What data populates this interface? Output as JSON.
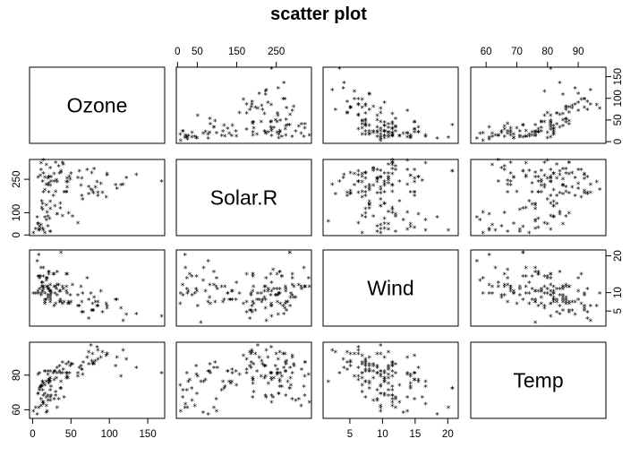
{
  "chart_data": {
    "type": "scatter",
    "subtype": "scatterplot-matrix",
    "title": "scatter plot",
    "marker": "*",
    "variables": [
      "Ozone",
      "Solar.R",
      "Wind",
      "Temp"
    ],
    "axes": {
      "Ozone": {
        "ticks": [
          0,
          50,
          100,
          150
        ],
        "lim": [
          -4,
          172
        ],
        "tick_labels_on": [
          "bottom",
          "right"
        ]
      },
      "Solar.R": {
        "ticks": [
          0,
          50,
          150,
          250
        ],
        "lim": [
          -3,
          339
        ],
        "tick_labels_on": [
          "top",
          "left"
        ],
        "top_labels": [
          "0",
          "50",
          "150",
          "250"
        ],
        "left_labels": [
          "0",
          "100",
          "250"
        ],
        "left_ticks": [
          0,
          100,
          250
        ]
      },
      "Wind": {
        "ticks": [
          5,
          10,
          15,
          20
        ],
        "lim": [
          0.9,
          21.6
        ],
        "tick_labels_on": [
          "bottom",
          "right"
        ],
        "bottom_labels": [
          "5",
          "10",
          "15",
          "20"
        ],
        "right_labels": [
          "5",
          "10",
          "20"
        ],
        "right_ticks": [
          5,
          10,
          20
        ]
      },
      "Temp": {
        "ticks": [
          60,
          70,
          80,
          90
        ],
        "lim": [
          55,
          99
        ],
        "tick_labels_on": [
          "top",
          "left"
        ],
        "left_labels": [
          "60",
          "80"
        ],
        "left_ticks": [
          60,
          80
        ]
      }
    },
    "observations": [
      [
        41,
        190,
        7.4,
        67
      ],
      [
        36,
        118,
        8,
        72
      ],
      [
        12,
        149,
        12.6,
        74
      ],
      [
        18,
        313,
        11.5,
        62
      ],
      [
        28,
        null,
        14.9,
        66
      ],
      [
        23,
        299,
        8.6,
        65
      ],
      [
        19,
        99,
        13.8,
        59
      ],
      [
        8,
        19,
        20.1,
        61
      ],
      [
        7,
        256,
        9.7,
        69
      ],
      [
        16,
        256,
        9.7,
        69
      ],
      [
        11,
        290,
        9.2,
        66
      ],
      [
        14,
        274,
        10.9,
        68
      ],
      [
        18,
        65,
        13.2,
        58
      ],
      [
        14,
        334,
        11.5,
        64
      ],
      [
        34,
        307,
        12,
        66
      ],
      [
        6,
        78,
        18.4,
        57
      ],
      [
        30,
        322,
        11.5,
        68
      ],
      [
        11,
        44,
        9.7,
        62
      ],
      [
        1,
        8,
        9.7,
        59
      ],
      [
        11,
        320,
        16.6,
        73
      ],
      [
        4,
        25,
        9.7,
        61
      ],
      [
        32,
        92,
        12,
        61
      ],
      [
        23,
        13,
        12,
        67
      ],
      [
        45,
        252,
        14.9,
        81
      ],
      [
        115,
        223,
        5.7,
        79
      ],
      [
        37,
        279,
        7.4,
        76
      ],
      [
        29,
        127,
        9.7,
        82
      ],
      [
        71,
        291,
        13.8,
        90
      ],
      [
        39,
        323,
        11.5,
        87
      ],
      [
        23,
        148,
        8,
        82
      ],
      [
        21,
        191,
        14.9,
        77
      ],
      [
        37,
        284,
        20.7,
        72
      ],
      [
        20,
        37,
        9.2,
        65
      ],
      [
        12,
        120,
        11.5,
        73
      ],
      [
        13,
        137,
        10.3,
        76
      ],
      [
        135,
        269,
        4.1,
        84
      ],
      [
        49,
        248,
        9.2,
        85
      ],
      [
        32,
        236,
        9.2,
        81
      ],
      [
        64,
        175,
        4.6,
        83
      ],
      [
        40,
        314,
        10.9,
        83
      ],
      [
        77,
        276,
        5.1,
        88
      ],
      [
        97,
        267,
        6.3,
        92
      ],
      [
        97,
        272,
        5.7,
        92
      ],
      [
        85,
        175,
        7.4,
        89
      ],
      [
        10,
        264,
        14.3,
        73
      ],
      [
        27,
        175,
        14.9,
        81
      ],
      [
        7,
        48,
        14.3,
        80
      ],
      [
        48,
        260,
        6.9,
        81
      ],
      [
        35,
        274,
        10.3,
        82
      ],
      [
        61,
        285,
        6.3,
        84
      ],
      [
        79,
        187,
        5.1,
        87
      ],
      [
        63,
        220,
        11.5,
        85
      ],
      [
        16,
        7,
        6.9,
        74
      ],
      [
        80,
        294,
        8.6,
        86
      ],
      [
        108,
        223,
        8,
        85
      ],
      [
        20,
        81,
        8.6,
        82
      ],
      [
        52,
        82,
        12,
        86
      ],
      [
        82,
        213,
        7.4,
        88
      ],
      [
        50,
        275,
        7.4,
        86
      ],
      [
        64,
        253,
        7.4,
        83
      ],
      [
        59,
        254,
        9.2,
        81
      ],
      [
        39,
        83,
        6.9,
        81
      ],
      [
        9,
        24,
        13.8,
        81
      ],
      [
        16,
        77,
        7.4,
        82
      ],
      [
        78,
        null,
        6.9,
        86
      ],
      [
        35,
        null,
        7.4,
        85
      ],
      [
        66,
        null,
        4.6,
        87
      ],
      [
        122,
        255,
        4,
        89
      ],
      [
        89,
        229,
        10.3,
        90
      ],
      [
        110,
        207,
        8,
        90
      ],
      [
        44,
        192,
        11.5,
        86
      ],
      [
        28,
        273,
        11.5,
        82
      ],
      [
        65,
        157,
        9.7,
        80
      ],
      [
        22,
        71,
        10.3,
        77
      ],
      [
        59,
        51,
        6.3,
        79
      ],
      [
        23,
        115,
        7.4,
        76
      ],
      [
        31,
        244,
        10.9,
        78
      ],
      [
        44,
        190,
        10.3,
        78
      ],
      [
        21,
        259,
        15.5,
        77
      ],
      [
        9,
        36,
        14.3,
        72
      ],
      [
        45,
        212,
        9.7,
        79
      ],
      [
        168,
        238,
        3.4,
        81
      ],
      [
        73,
        215,
        8,
        86
      ],
      [
        76,
        203,
        9.7,
        97
      ],
      [
        118,
        225,
        2.3,
        94
      ],
      [
        84,
        237,
        6.3,
        96
      ],
      [
        85,
        188,
        6.3,
        94
      ],
      [
        96,
        167,
        6.9,
        91
      ],
      [
        78,
        197,
        5.1,
        92
      ],
      [
        73,
        183,
        2.8,
        93
      ],
      [
        91,
        189,
        4.6,
        93
      ],
      [
        47,
        95,
        7.4,
        87
      ],
      [
        32,
        92,
        15.5,
        84
      ],
      [
        20,
        252,
        10.9,
        80
      ],
      [
        23,
        220,
        10.3,
        78
      ],
      [
        21,
        230,
        10.9,
        75
      ],
      [
        24,
        259,
        9.7,
        73
      ],
      [
        44,
        236,
        14.9,
        81
      ],
      [
        21,
        259,
        15.5,
        76
      ],
      [
        28,
        238,
        6.3,
        77
      ],
      [
        9,
        24,
        10.9,
        71
      ],
      [
        13,
        112,
        11.5,
        71
      ],
      [
        46,
        237,
        6.9,
        78
      ],
      [
        18,
        224,
        13.8,
        67
      ],
      [
        13,
        27,
        10.3,
        76
      ],
      [
        24,
        238,
        10.3,
        68
      ],
      [
        16,
        201,
        8,
        82
      ],
      [
        13,
        238,
        12.6,
        64
      ],
      [
        23,
        14,
        9.2,
        71
      ],
      [
        36,
        139,
        10.3,
        81
      ],
      [
        7,
        49,
        10.3,
        69
      ],
      [
        14,
        20,
        16.6,
        63
      ],
      [
        30,
        193,
        6.9,
        70
      ],
      [
        14,
        191,
        14.3,
        75
      ],
      [
        18,
        131,
        8,
        76
      ],
      [
        20,
        223,
        11.5,
        68
      ],
      [
        null,
        286,
        8.6,
        78
      ],
      [
        null,
        287,
        9.7,
        74
      ],
      [
        null,
        242,
        16.1,
        67
      ],
      [
        null,
        186,
        9.2,
        84
      ],
      [
        null,
        220,
        8.6,
        85
      ],
      [
        null,
        264,
        14.3,
        79
      ],
      [
        null,
        127,
        9.7,
        82
      ],
      [
        null,
        273,
        6.9,
        87
      ],
      [
        null,
        291,
        14.9,
        91
      ],
      [
        null,
        323,
        11.5,
        87
      ],
      [
        null,
        259,
        10.9,
        93
      ],
      [
        null,
        250,
        9.2,
        92
      ],
      [
        null,
        332,
        13.8,
        80
      ],
      [
        null,
        322,
        11.5,
        79
      ],
      [
        null,
        191,
        14.9,
        77
      ],
      [
        null,
        284,
        20.7,
        72
      ],
      [
        null,
        135,
        8,
        75
      ],
      [
        null,
        98,
        11.5,
        66
      ],
      [
        null,
        31,
        14.9,
        77
      ],
      [
        null,
        138,
        8,
        83
      ],
      [
        null,
        47,
        10.9,
        85
      ],
      [
        null,
        59,
        1.7,
        76
      ],
      [
        null,
        101,
        10.9,
        84
      ],
      [
        null,
        295,
        11.5,
        85
      ],
      [
        null,
        186,
        9.7,
        92
      ],
      [
        null,
        183,
        5.1,
        85
      ],
      [
        null,
        66,
        16.6,
        76
      ],
      [
        null,
        291,
        12,
        81
      ]
    ]
  }
}
